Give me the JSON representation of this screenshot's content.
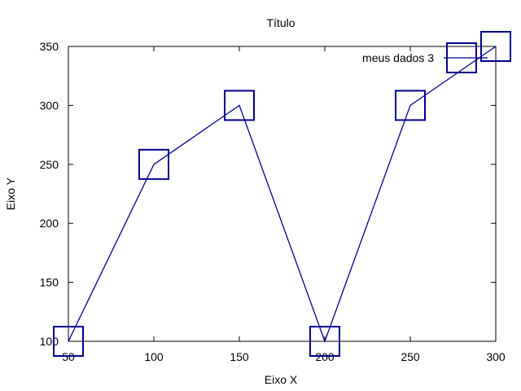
{
  "chart_data": {
    "type": "line",
    "title": "Título",
    "xlabel": "Eixo X",
    "ylabel": "Eixo Y",
    "xlim": [
      50,
      300
    ],
    "ylim": [
      100,
      350
    ],
    "xticks": [
      50,
      100,
      150,
      200,
      250,
      300
    ],
    "yticks": [
      100,
      150,
      200,
      250,
      300,
      350
    ],
    "grid": false,
    "legend_position": "top-right",
    "series": [
      {
        "name": "meus dados 3",
        "color": "#00008b",
        "marker": "square",
        "x": [
          50,
          100,
          150,
          200,
          250,
          300
        ],
        "y": [
          100,
          250,
          300,
          100,
          300,
          350
        ]
      }
    ]
  }
}
